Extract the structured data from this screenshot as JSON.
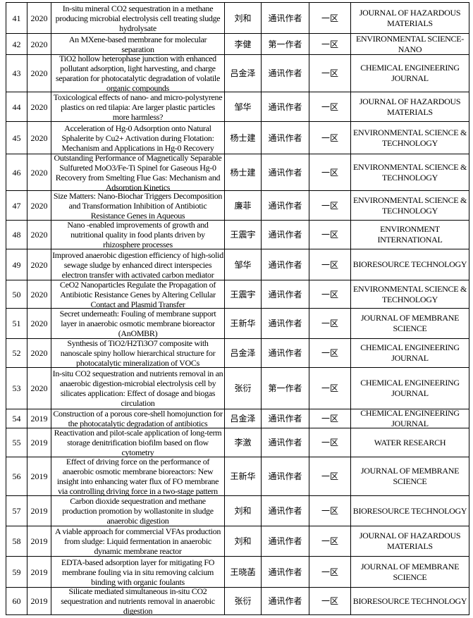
{
  "rows": [
    {
      "no": "41",
      "year": "2020",
      "title": "In-situ mineral CO2 sequestration in a methane producing microbial electrolysis cell treating sludge hydrolysate",
      "author": "刘和",
      "role": "通讯作者",
      "zone": "一区",
      "journal": "JOURNAL OF HAZARDOUS MATERIALS"
    },
    {
      "no": "42",
      "year": "2020",
      "title": "An MXene-based membrane for molecular separation",
      "author": "李健",
      "role": "第一作者",
      "zone": "一区",
      "journal": "ENVIRONMENTAL SCIENCE-NANO"
    },
    {
      "no": "43",
      "year": "2020",
      "title": "TiO2 hollow heterophase junction with enhanced pollutant adsorption, light harvesting, and charge separation for photocatalytic degradation of volatile organic compounds",
      "author": "吕金泽",
      "role": "通讯作者",
      "zone": "一区",
      "journal": "CHEMICAL ENGINEERING JOURNAL"
    },
    {
      "no": "44",
      "year": "2020",
      "title": "Toxicological effects of nano- and micro-polystyrene plastics on red tilapia: Are larger plastic particles more harmless?",
      "author": "邹华",
      "role": "通讯作者",
      "zone": "一区",
      "journal": "JOURNAL OF HAZARDOUS MATERIALS"
    },
    {
      "no": "45",
      "year": "2020",
      "title": "Acceleration of Hg-0 Adsorption onto Natural Sphalerite by Cu2+ Activation during Flotation: Mechanism and Applications in Hg-0 Recovery",
      "author": "杨士建",
      "role": "通讯作者",
      "zone": "一区",
      "journal": "ENVIRONMENTAL SCIENCE & TECHNOLOGY"
    },
    {
      "no": "46",
      "year": "2020",
      "title": "Outstanding Performance of Magnetically Separable Sulfureted MoO3/Fe-Ti Spinel for Gaseous Hg-0 Recovery from Smelting Flue Gas: Mechanism and Adsorption Kinetics",
      "author": "杨士建",
      "role": "通讯作者",
      "zone": "一区",
      "journal": "ENVIRONMENTAL SCIENCE & TECHNOLOGY"
    },
    {
      "no": "47",
      "year": "2020",
      "title": "Size Matters: Nano-Biochar Triggers Decomposition and Transformation Inhibition of Antibiotic Resistance Genes in Aqueous",
      "author": "廉菲",
      "role": "通讯作者",
      "zone": "一区",
      "journal": "ENVIRONMENTAL SCIENCE & TECHNOLOGY"
    },
    {
      "no": "48",
      "year": "2020",
      "title": "Nano -enabled improvements of growth and nutritional quality in food plants driven by rhizosphere processes",
      "author": "王震宇",
      "role": "通讯作者",
      "zone": "一区",
      "journal": "ENVIRONMENT INTERNATIONAL"
    },
    {
      "no": "49",
      "year": "2020",
      "title": "Improved anaerobic digestion efficiency of high-solid sewage sludge by enhanced direct interspecies electron transfer with activated carbon mediator",
      "author": "邹华",
      "role": "通讯作者",
      "zone": "一区",
      "journal": "BIORESOURCE TECHNOLOGY"
    },
    {
      "no": "50",
      "year": "2020",
      "title": "CeO2 Nanoparticles Regulate the Propagation of Antibiotic Resistance Genes by Altering Cellular Contact and Plasmid Transfer",
      "author": "王震宇",
      "role": "通讯作者",
      "zone": "一区",
      "journal": "ENVIRONMENTAL SCIENCE & TECHNOLOGY"
    },
    {
      "no": "51",
      "year": "2020",
      "title": "Secret underneath: Fouling of membrane support layer in anaerobic osmotic membrane bioreactor (AnOMBR)",
      "author": "王新华",
      "role": "通讯作者",
      "zone": "一区",
      "journal": "JOURNAL OF MEMBRANE SCIENCE"
    },
    {
      "no": "52",
      "year": "2020",
      "title": "Synthesis of TiO2/H2Ti3O7 composite with nanoscale spiny hollow hierarchical structure for photocatalytic mineralization of VOCs",
      "author": "吕金泽",
      "role": "通讯作者",
      "zone": "一区",
      "journal": "CHEMICAL ENGINEERING JOURNAL"
    },
    {
      "no": "53",
      "year": "2020",
      "title": "In-situ CO2 sequestration and nutrients removal in an anaerobic digestion-microbial electrolysis cell by silicates application: Effect of dosage and biogas circulation",
      "author": "张衍",
      "role": "第一作者",
      "zone": "一区",
      "journal": "CHEMICAL ENGINEERING JOURNAL"
    },
    {
      "no": "54",
      "year": "2019",
      "title": "Construction of a porous core-shell homojunction for the photocatalytic degradation of antibiotics",
      "author": "吕金泽",
      "role": "通讯作者",
      "zone": "一区",
      "journal": "CHEMICAL ENGINEERING JOURNAL"
    },
    {
      "no": "55",
      "year": "2019",
      "title": "Reactivation and pilot-scale application of long-term storage denitrification biofilm based on flow cytometry",
      "author": "李激",
      "role": "通讯作者",
      "zone": "一区",
      "journal": "WATER RESEARCH"
    },
    {
      "no": "56",
      "year": "2019",
      "title": "Effect of driving force on the performance of anaerobic osmotic membrane bioreactors: New insight into enhancing water flux of FO membrane via controlling driving force in a two-stage pattern",
      "author": "王新华",
      "role": "通讯作者",
      "zone": "一区",
      "journal": "JOURNAL OF MEMBRANE SCIENCE"
    },
    {
      "no": "57",
      "year": "2019",
      "title": "Carbon dioxide sequestration and methane production promotion by wollastonite in sludge anaerobic digestion",
      "author": "刘和",
      "role": "通讯作者",
      "zone": "一区",
      "journal": "BIORESOURCE TECHNOLOGY"
    },
    {
      "no": "58",
      "year": "2019",
      "title": "A viable approach for commercial VFAs production from sludge: Liquid fermentation in anaerobic dynamic membrane reactor",
      "author": "刘和",
      "role": "通讯作者",
      "zone": "一区",
      "journal": "JOURNAL OF HAZARDOUS MATERIALS"
    },
    {
      "no": "59",
      "year": "2019",
      "title": "EDTA-based adsorption layer for mitigating FO membrane fouling via in situ removing calcium binding with organic foulants",
      "author": "王晓菡",
      "role": "通讯作者",
      "zone": "一区",
      "journal": "JOURNAL OF MEMBRANE SCIENCE"
    },
    {
      "no": "60",
      "year": "2019",
      "title": "Silicate mediated simultaneous in-situ CO2 sequestration and nutrients removal in anaerobic digestion",
      "author": "张衍",
      "role": "通讯作者",
      "zone": "一区",
      "journal": "BIORESOURCE TECHNOLOGY"
    }
  ]
}
